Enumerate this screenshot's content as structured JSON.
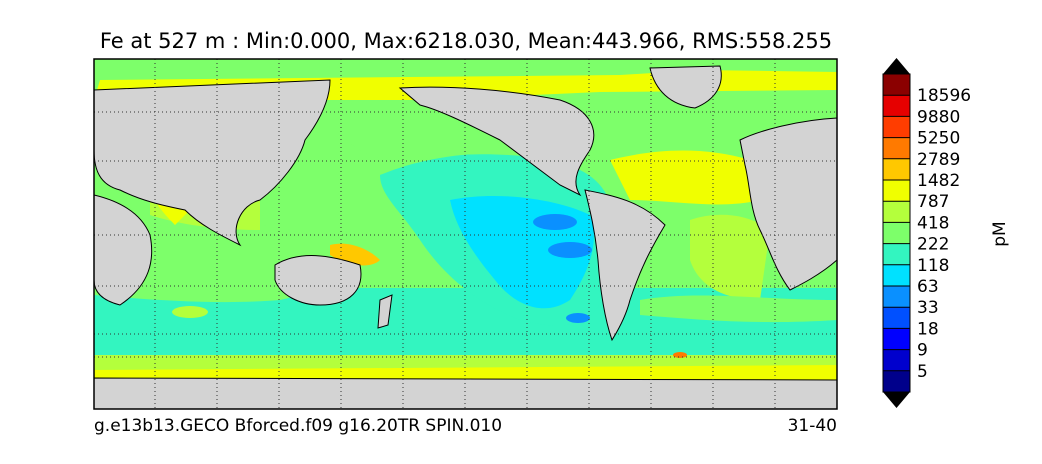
{
  "title": "Fe at 527 m : Min:0.000, Max:6218.030, Mean:443.966, RMS:558.255",
  "footer_left": "g.e13b13.GECO Bforced.f09 g16.20TR SPIN.010",
  "footer_right": "31-40",
  "chart_data": {
    "type": "heatmap",
    "variable": "Fe",
    "depth": "527 m",
    "stats": {
      "min": 0.0,
      "max": 6218.03,
      "mean": 443.966,
      "rms": 558.255
    },
    "colorbar": {
      "label": "pM",
      "extend": "both",
      "tick_labels": [
        "5",
        "9",
        "18",
        "33",
        "63",
        "118",
        "222",
        "418",
        "787",
        "1482",
        "2789",
        "5250",
        "9880",
        "18596"
      ],
      "colors": [
        "#00008b",
        "#0000cd",
        "#0000ff",
        "#0050ff",
        "#0a90ff",
        "#00e1ff",
        "#33f5c0",
        "#7dff6a",
        "#b4ff3c",
        "#f0ff00",
        "#ffc800",
        "#ff7a00",
        "#ff3d00",
        "#e60000",
        "#8b0000"
      ]
    },
    "land_color": "#d3d3d3",
    "grid": "dotted"
  }
}
